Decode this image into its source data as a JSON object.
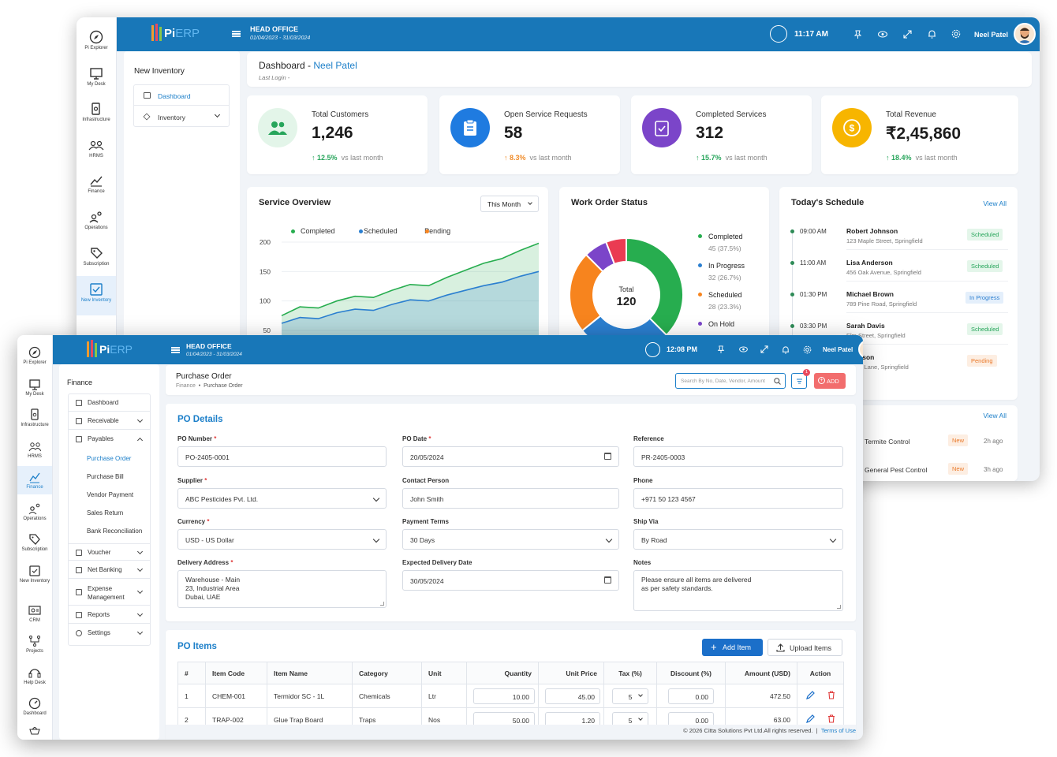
{
  "app": {
    "logo_pi": "Pi",
    "logo_erp": "ERP",
    "office": "HEAD OFFICE",
    "fiscal_year": "01/04/2023 - 31/03/2024",
    "user": "Neel Patel"
  },
  "rail_back": [
    {
      "label": "Pi Explorer",
      "icon": "compass-icon"
    },
    {
      "label": "My Desk",
      "icon": "desk-icon"
    },
    {
      "label": "Infrastructure",
      "icon": "infrastructure-icon"
    },
    {
      "label": "HRMS",
      "icon": "hrms-icon"
    },
    {
      "label": "Finance",
      "icon": "finance-icon"
    },
    {
      "label": "Operations",
      "icon": "operations-icon"
    },
    {
      "label": "Subscription",
      "icon": "subscription-icon"
    },
    {
      "label": "New Inventory",
      "icon": "inventory-icon"
    }
  ],
  "rail_front": [
    {
      "label": "Pi Explorer"
    },
    {
      "label": "My Desk"
    },
    {
      "label": "Infrastructure"
    },
    {
      "label": "HRMS"
    },
    {
      "label": "Finance"
    },
    {
      "label": "Operations"
    },
    {
      "label": "Subscription"
    },
    {
      "label": "New Inventory"
    },
    {
      "label": "CRM"
    },
    {
      "label": "Projects"
    },
    {
      "label": "Help Desk"
    },
    {
      "label": "Dashboard"
    }
  ],
  "back": {
    "time": "11:17 AM",
    "submenu": {
      "title": "New Inventory",
      "items": [
        "Dashboard",
        "Inventory"
      ]
    },
    "header": {
      "title": "Dashboard - ",
      "user": "Neel Patel",
      "last_login": "Last Login -"
    },
    "stats": [
      {
        "title": "Total Customers",
        "value": "1,246",
        "delta": "12.5%",
        "suffix": "vs last month",
        "color": "#27a55b"
      },
      {
        "title": "Open Service Requests",
        "value": "58",
        "delta": "8.3%",
        "suffix": "vs last month",
        "color": "#1f7be0"
      },
      {
        "title": "Completed Services",
        "value": "312",
        "delta": "15.7%",
        "suffix": "vs last month",
        "color": "#7b45c9"
      },
      {
        "title": "Total Revenue",
        "value": "₹2,45,860",
        "delta": "18.4%",
        "suffix": "vs last month",
        "color": "#f5b400"
      }
    ],
    "service_overview": {
      "title": "Service Overview",
      "range": "This Month",
      "legend": [
        "Completed",
        "Scheduled",
        "Pending"
      ]
    },
    "work_order": {
      "title": "Work Order Status",
      "total_label": "Total",
      "total": "120",
      "legend": [
        {
          "name": "Completed",
          "detail": "45 (37.5%)",
          "color": "#27ad4f"
        },
        {
          "name": "In Progress",
          "detail": "32 (26.7%)",
          "color": "#2b7fd0"
        },
        {
          "name": "Scheduled",
          "detail": "28 (23.3%)",
          "color": "#f7841e"
        },
        {
          "name": "On Hold",
          "detail": "",
          "color": "#7b45c9"
        }
      ]
    },
    "schedule": {
      "title": "Today's Schedule",
      "view_all": "View All",
      "items": [
        {
          "time": "09:00 AM",
          "name": "Robert Johnson",
          "addr": "123 Maple Street, Springfield",
          "status": "Scheduled"
        },
        {
          "time": "11:00 AM",
          "name": "Lisa Anderson",
          "addr": "456 Oak Avenue, Springfield",
          "status": "Scheduled"
        },
        {
          "time": "01:30 PM",
          "name": "Michael Brown",
          "addr": "789 Pine Road, Springfield",
          "status": "In Progress"
        },
        {
          "time": "03:30 PM",
          "name": "Sarah Davis",
          "addr": "Elm Street, Springfield",
          "status": "Scheduled"
        },
        {
          "time": "",
          "name": "d Wilson",
          "addr": "Cedar Lane, Springfield",
          "status": "Pending"
        }
      ]
    },
    "recent": {
      "view_all": "View All",
      "items": [
        {
          "name": "Termite Control",
          "status": "New",
          "ago": "2h ago"
        },
        {
          "name": "General Pest Control",
          "status": "New",
          "ago": "3h ago"
        }
      ]
    }
  },
  "chart_data": {
    "type": "area",
    "title": "Service Overview",
    "series": [
      {
        "name": "Completed",
        "color": "#27ad4f",
        "values": [
          75,
          90,
          88,
          100,
          108,
          106,
          118,
          128,
          126,
          140,
          152,
          164,
          172,
          186,
          198
        ]
      },
      {
        "name": "Scheduled",
        "color": "#2b7fd0",
        "values": [
          62,
          72,
          70,
          80,
          86,
          84,
          94,
          102,
          100,
          110,
          118,
          126,
          132,
          142,
          150
        ]
      }
    ],
    "ylim": [
      50,
      200
    ],
    "yticks": [
      "200",
      "150",
      "100",
      "50"
    ],
    "legend": "top"
  },
  "donut_data": {
    "type": "pie",
    "values": [
      45,
      32,
      28,
      8,
      7
    ],
    "colors": [
      "#27ad4f",
      "#2b7fd0",
      "#f7841e",
      "#7b45c9",
      "#ea3b52"
    ]
  },
  "front": {
    "time": "12:08 PM",
    "submenu": {
      "title": "Finance",
      "items": [
        {
          "label": "Dashboard"
        },
        {
          "label": "Receivable"
        },
        {
          "label": "Payables"
        },
        {
          "label": "Voucher"
        },
        {
          "label": "Net Banking"
        },
        {
          "label": "Expense Management"
        },
        {
          "label": "Reports"
        },
        {
          "label": "Settings"
        }
      ],
      "payables_sub": [
        "Purchase Order",
        "Purchase Bill",
        "Vendor Payment",
        "Sales Return",
        "Bank Reconciliation"
      ]
    },
    "header": {
      "title": "Purchase Order",
      "crumb1": "Finance",
      "crumb2": "Purchase Order",
      "search_placeholder": "Search By No, Date, Vendor, Amount",
      "filter_count": "1",
      "add": "ADD"
    },
    "po": {
      "title": "PO Details",
      "po_number_label": "PO Number",
      "po_number": "PO-2405-0001",
      "po_date_label": "PO Date",
      "po_date": "20/05/2024",
      "reference_label": "Reference",
      "reference": "PR-2405-0003",
      "supplier_label": "Supplier",
      "supplier": "ABC Pesticides Pvt. Ltd.",
      "contact_label": "Contact Person",
      "contact": "John Smith",
      "phone_label": "Phone",
      "phone": "+971 50 123 4567",
      "currency_label": "Currency",
      "currency": "USD - US Dollar",
      "terms_label": "Payment Terms",
      "terms": "30 Days",
      "shipvia_label": "Ship Via",
      "shipvia": "By Road",
      "address_label": "Delivery Address",
      "address_l1": "Warehouse - Main",
      "address_l2": "23, Industrial Area",
      "address_l3": "Dubai, UAE",
      "edd_label": "Expected Delivery Date",
      "edd": "30/05/2024",
      "notes_label": "Notes",
      "notes_l1": "Please ensure all items are delivered",
      "notes_l2": "as per safety standards."
    },
    "items": {
      "title": "PO Items",
      "add_item": "Add Item",
      "upload": "Upload Items",
      "columns": [
        "#",
        "Item Code",
        "Item Name",
        "Category",
        "Unit",
        "Quantity",
        "Unit Price",
        "Tax (%)",
        "Discount (%)",
        "Amount (USD)",
        "Action"
      ],
      "rows": [
        {
          "n": "1",
          "code": "CHEM-001",
          "name": "Termidor SC - 1L",
          "cat": "Chemicals",
          "unit": "Ltr",
          "qty": "10.00",
          "price": "45.00",
          "tax": "5",
          "disc": "0.00",
          "amt": "472.50"
        },
        {
          "n": "2",
          "code": "TRAP-002",
          "name": "Glue Trap Board",
          "cat": "Traps",
          "unit": "Nos",
          "qty": "50.00",
          "price": "1.20",
          "tax": "5",
          "disc": "0.00",
          "amt": "63.00"
        }
      ]
    },
    "footer": {
      "copyright": "© 2026 Citta Solutions Pvt Ltd.All rights reserved.",
      "terms": "Terms of Use"
    }
  }
}
